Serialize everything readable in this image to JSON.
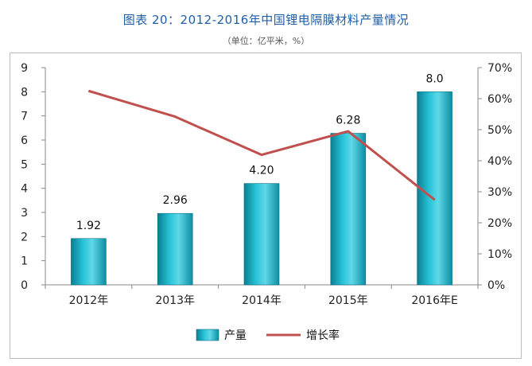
{
  "title": "图表 20：2012-2016年中国锂电隔膜材料产量情况",
  "subtitle": "（单位：亿平米，%）",
  "chart_data": {
    "type": "bar",
    "categories": [
      "2012年",
      "2013年",
      "2014年",
      "2015年",
      "2016年E"
    ],
    "series": [
      {
        "name": "产量",
        "type": "bar",
        "axis": "left",
        "values": [
          1.92,
          2.96,
          4.2,
          6.28,
          8.0
        ],
        "labels": [
          "1.92",
          "2.96",
          "4.20",
          "6.28",
          "8.0"
        ],
        "color": "#1bb3c8"
      },
      {
        "name": "增长率",
        "type": "line",
        "axis": "right",
        "values": [
          62.5,
          54.2,
          41.9,
          49.5,
          27.4
        ],
        "color": "#c0504d"
      }
    ],
    "ylim_left": [
      0,
      9
    ],
    "yticks_left": [
      "0",
      "1",
      "2",
      "3",
      "4",
      "5",
      "6",
      "7",
      "8",
      "9"
    ],
    "ylim_right": [
      0,
      70
    ],
    "yticks_right": [
      "0%",
      "10%",
      "20%",
      "30%",
      "40%",
      "50%",
      "60%",
      "70%"
    ],
    "grid": false,
    "legend_position": "bottom"
  }
}
